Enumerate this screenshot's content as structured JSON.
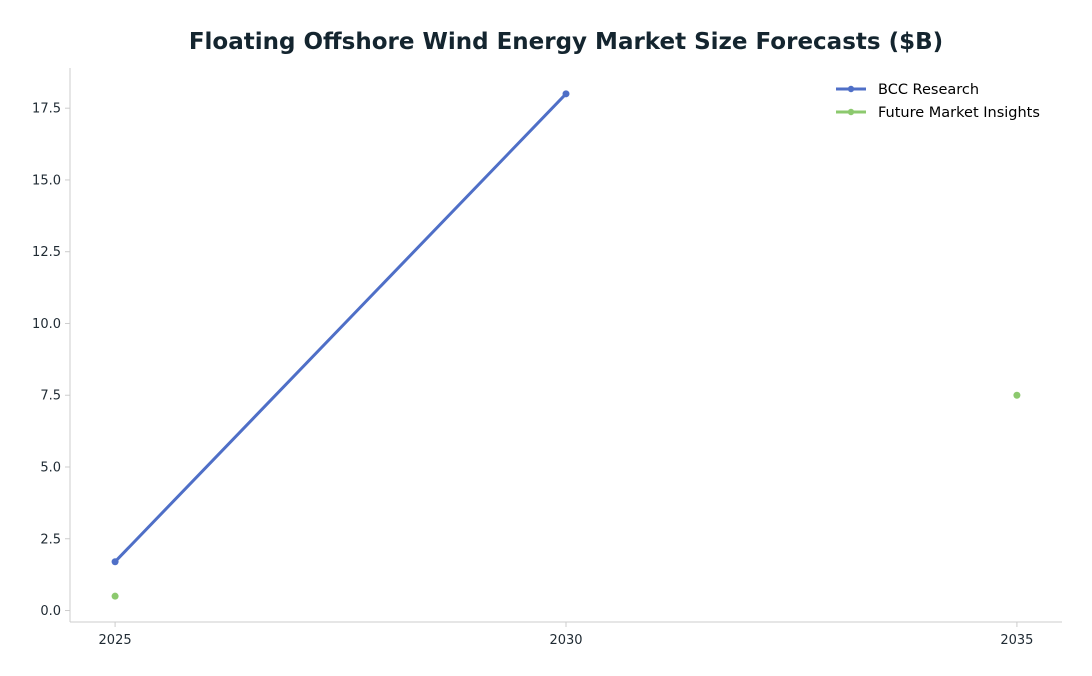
{
  "chart_data": {
    "type": "line",
    "title": "Floating Offshore Wind Energy Market Size Forecasts ($B)",
    "xlabel": "",
    "ylabel": "",
    "x_ticks": [
      2025,
      2030,
      2035
    ],
    "x_tick_labels": [
      "2025",
      "2030",
      "2035"
    ],
    "y_ticks": [
      0.0,
      2.5,
      5.0,
      7.5,
      10.0,
      12.5,
      15.0,
      17.5
    ],
    "y_tick_labels": [
      "0.0",
      "2.5",
      "5.0",
      "7.5",
      "10.0",
      "12.5",
      "15.0",
      "17.5"
    ],
    "xlim": [
      2024.5,
      2035.5
    ],
    "ylim": [
      -0.4,
      18.9
    ],
    "grid": false,
    "legend_position": "top-right",
    "series": [
      {
        "name": "BCC Research",
        "color": "#4f6fc7",
        "points": [
          {
            "x": 2025,
            "y": 1.7
          },
          {
            "x": 2030,
            "y": 18.0
          }
        ]
      },
      {
        "name": "Future Market Insights",
        "color": "#8cc96e",
        "points": [
          {
            "x": 2025,
            "y": 0.5
          },
          {
            "x": 2035,
            "y": 7.5
          }
        ]
      }
    ]
  }
}
